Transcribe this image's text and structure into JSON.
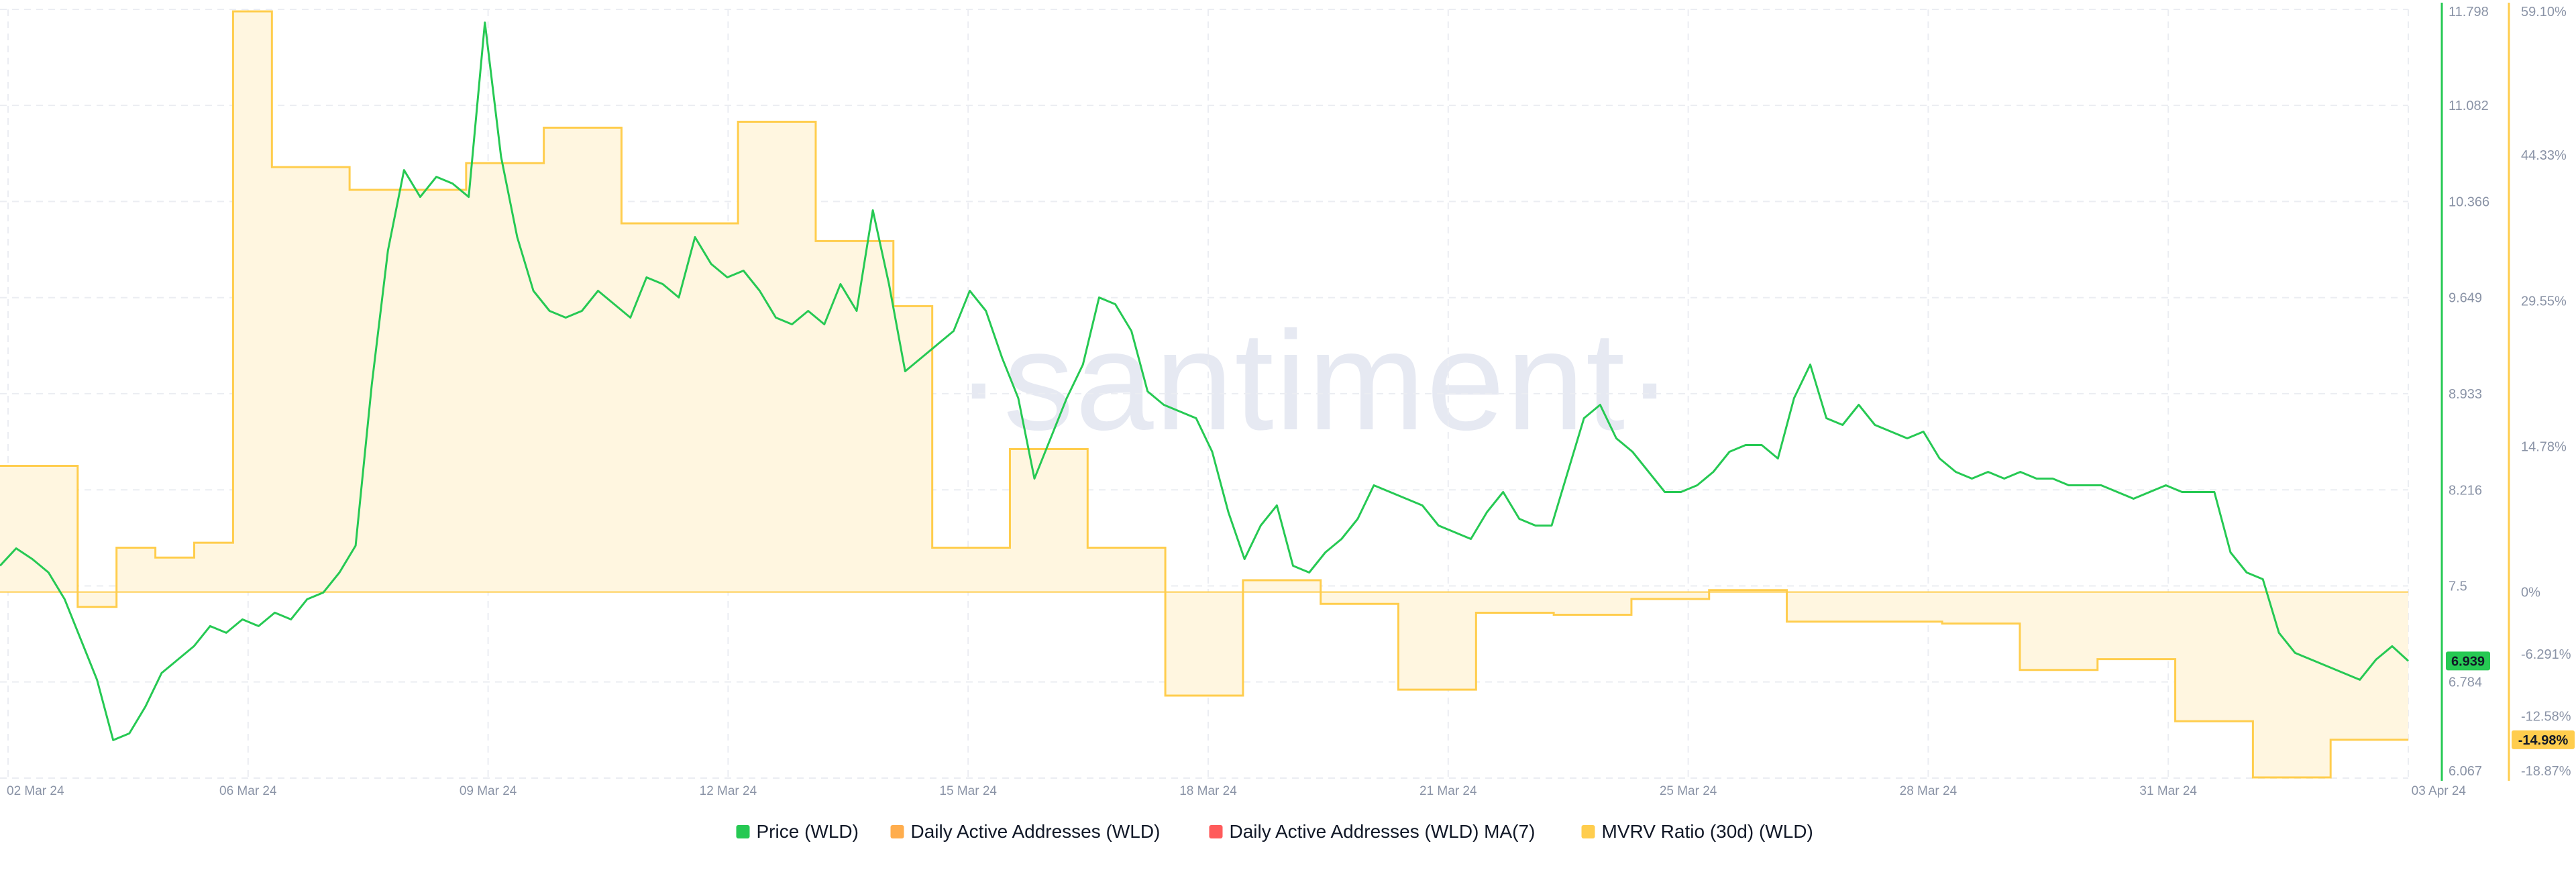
{
  "chart_data": {
    "type": "line",
    "title": "",
    "watermark": "santiment",
    "x_ticks": [
      "02 Mar 24",
      "06 Mar 24",
      "09 Mar 24",
      "12 Mar 24",
      "15 Mar 24",
      "18 Mar 24",
      "21 Mar 24",
      "25 Mar 24",
      "28 Mar 24",
      "31 Mar 24",
      "03 Apr 24"
    ],
    "price_axis": {
      "range": [
        6.067,
        11.798
      ],
      "ticks": [
        "11.798",
        "11.082",
        "10.366",
        "9.649",
        "8.933",
        "8.216",
        "7.5",
        "6.784",
        "6.067"
      ],
      "tick_values": [
        11.798,
        11.082,
        10.366,
        9.649,
        8.933,
        8.216,
        7.5,
        6.784,
        6.067
      ]
    },
    "mvrv_axis": {
      "range": [
        -18.87,
        59.1
      ],
      "ticks": [
        "59.10%",
        "44.33%",
        "29.55%",
        "14.78%",
        "0%",
        "-6.291%",
        "-12.58%",
        "-18.87%"
      ],
      "tick_values": [
        59.1,
        44.33,
        29.55,
        14.78,
        0,
        -6.291,
        -12.58,
        -18.87
      ]
    },
    "colors": {
      "price": "#26c953",
      "daa": "#ffad4d",
      "daa_ma": "#ff5b5b",
      "mvrv_line": "#ffcd4d",
      "mvrv_fill": "#fff6e0",
      "price_badge": "#26c953",
      "mvrv_badge": "#ffcd4d",
      "grid": "#ebedf2"
    },
    "badges": {
      "price": "6.939",
      "mvrv": "-14.98%"
    },
    "series": [
      {
        "name": "Price (WLD)",
        "color": "#26c953",
        "values": [
          7.65,
          7.78,
          7.7,
          7.6,
          7.4,
          7.1,
          6.8,
          6.35,
          6.4,
          6.6,
          6.85,
          6.95,
          7.05,
          7.2,
          7.15,
          7.25,
          7.2,
          7.3,
          7.25,
          7.4,
          7.45,
          7.6,
          7.8,
          9.0,
          10.0,
          10.6,
          10.4,
          10.55,
          10.5,
          10.4,
          11.7,
          10.7,
          10.1,
          9.7,
          9.55,
          9.5,
          9.55,
          9.7,
          9.6,
          9.5,
          9.8,
          9.75,
          9.65,
          10.1,
          9.9,
          9.8,
          9.85,
          9.7,
          9.5,
          9.45,
          9.55,
          9.45,
          9.75,
          9.55,
          10.3,
          9.75,
          9.1,
          9.2,
          9.3,
          9.4,
          9.7,
          9.55,
          9.2,
          8.9,
          8.3,
          8.6,
          8.9,
          9.15,
          9.65,
          9.6,
          9.4,
          8.95,
          8.85,
          8.8,
          8.75,
          8.5,
          8.05,
          7.7,
          7.95,
          8.1,
          7.65,
          7.6,
          7.75,
          7.85,
          8.0,
          8.25,
          8.2,
          8.15,
          8.1,
          7.95,
          7.9,
          7.85,
          8.05,
          8.2,
          8.0,
          7.95,
          7.95,
          8.35,
          8.75,
          8.85,
          8.6,
          8.5,
          8.35,
          8.2,
          8.2,
          8.25,
          8.35,
          8.5,
          8.55,
          8.55,
          8.45,
          8.9,
          9.15,
          8.75,
          8.7,
          8.85,
          8.7,
          8.65,
          8.6,
          8.65,
          8.45,
          8.35,
          8.3,
          8.35,
          8.3,
          8.35,
          8.3,
          8.3,
          8.25,
          8.25,
          8.25,
          8.2,
          8.15,
          8.2,
          8.25,
          8.2,
          8.2,
          8.2,
          7.75,
          7.6,
          7.55,
          7.15,
          7.0,
          6.95,
          6.9,
          6.85,
          6.8,
          6.95,
          7.05,
          6.94
        ]
      },
      {
        "name": "Daily Active Addresses (WLD)",
        "color": "#ffad4d",
        "values": []
      },
      {
        "name": "Daily Active Addresses (WLD) MA(7)",
        "color": "#ff5b5b",
        "values": []
      },
      {
        "name": "MVRV Ratio (30d) (WLD)",
        "color": "#ffcd4d",
        "values": [
          12.8,
          12.8,
          12.8,
          12.8,
          -1.5,
          -1.5,
          4.5,
          4.5,
          3.5,
          3.5,
          5.0,
          5.0,
          58.9,
          58.9,
          43.1,
          43.1,
          43.1,
          43.1,
          40.8,
          40.8,
          40.8,
          40.8,
          40.8,
          40.8,
          43.5,
          43.5,
          43.5,
          43.5,
          47.1,
          47.1,
          47.1,
          47.1,
          37.4,
          37.4,
          37.4,
          37.4,
          37.4,
          37.4,
          47.7,
          47.7,
          47.7,
          47.7,
          35.6,
          35.6,
          35.6,
          35.6,
          29.0,
          29.0,
          4.5,
          4.5,
          4.5,
          4.5,
          14.5,
          14.5,
          14.5,
          14.5,
          4.5,
          4.5,
          4.5,
          4.5,
          -10.5,
          -10.5,
          -10.5,
          -10.5,
          1.2,
          1.2,
          1.2,
          1.2,
          -1.2,
          -1.2,
          -1.2,
          -1.2,
          -9.9,
          -9.9,
          -9.9,
          -9.9,
          -2.1,
          -2.1,
          -2.1,
          -2.1,
          -2.3,
          -2.3,
          -2.3,
          -2.3,
          -0.7,
          -0.7,
          -0.7,
          -0.7,
          0.2,
          0.2,
          0.2,
          0.2,
          -3.0,
          -3.0,
          -3.0,
          -3.0,
          -3.0,
          -3.0,
          -3.0,
          -3.0,
          -3.2,
          -3.2,
          -3.2,
          -3.2,
          -7.9,
          -7.9,
          -7.9,
          -7.9,
          -6.8,
          -6.8,
          -6.8,
          -6.8,
          -13.1,
          -13.1,
          -13.1,
          -13.1,
          -18.8,
          -18.8,
          -18.8,
          -18.8,
          -14.98,
          -14.98,
          -14.98,
          -14.98
        ]
      }
    ],
    "legend": [
      {
        "label": "Price (WLD)",
        "color": "#26c953"
      },
      {
        "label": "Daily Active Addresses (WLD)",
        "color": "#ffad4d"
      },
      {
        "label": "Daily Active Addresses (WLD) MA(7)",
        "color": "#ff5b5b"
      },
      {
        "label": "MVRV Ratio (30d) (WLD)",
        "color": "#ffcd4d"
      }
    ],
    "legend_position": "bottom",
    "grid": true
  }
}
